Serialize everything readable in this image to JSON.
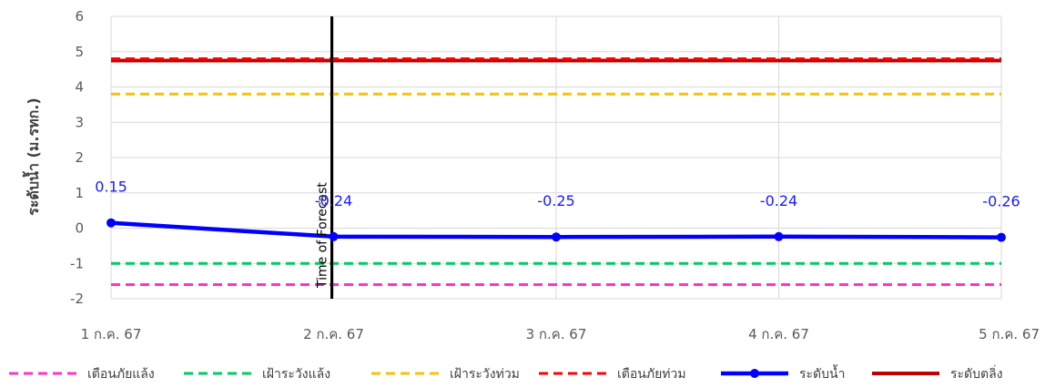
{
  "chart_data": {
    "type": "line",
    "xlabel": "",
    "ylabel": "ระดับน้ำ (ม.รทก.)",
    "ylim": [
      -2,
      6
    ],
    "yticks": [
      -2,
      -1,
      0,
      1,
      2,
      3,
      4,
      5,
      6
    ],
    "categories": [
      "1 ก.ค. 67",
      "2 ก.ค. 67",
      "3 ก.ค. 67",
      "4 ก.ค. 67",
      "5 ก.ค. 67"
    ],
    "forecast_marker": {
      "category_index": 1,
      "label": "Time of Forecast"
    },
    "series": [
      {
        "name": "เตือนภัยแล้ง",
        "kind": "dashed",
        "color": "#ff33cc",
        "values": [
          -1.6,
          -1.6,
          -1.6,
          -1.6,
          -1.6
        ]
      },
      {
        "name": "เฝ้าระวังแล้ง",
        "kind": "dashed",
        "color": "#00cc66",
        "values": [
          -1.0,
          -1.0,
          -1.0,
          -1.0,
          -1.0
        ]
      },
      {
        "name": "เฝ้าระวังท่วม",
        "kind": "dashed",
        "color": "#ffc000",
        "values": [
          3.8,
          3.8,
          3.8,
          3.8,
          3.8
        ]
      },
      {
        "name": "เตือนภัยท่วม",
        "kind": "dashed",
        "color": "#ff0000",
        "values": [
          4.8,
          4.8,
          4.8,
          4.8,
          4.8
        ]
      },
      {
        "name": "ระดับน้ำ",
        "kind": "marker-line",
        "color": "#0000ff",
        "values": [
          0.15,
          -0.24,
          -0.25,
          -0.24,
          -0.26
        ],
        "labels": [
          "0.15",
          "-0.24",
          "-0.25",
          "-0.24",
          "-0.26"
        ]
      },
      {
        "name": "ระดับตลิ่ง",
        "kind": "solid",
        "color": "#c00000",
        "values": [
          4.75,
          4.75,
          4.75,
          4.75,
          4.75
        ]
      }
    ],
    "grid": true,
    "legend": "bottom"
  }
}
